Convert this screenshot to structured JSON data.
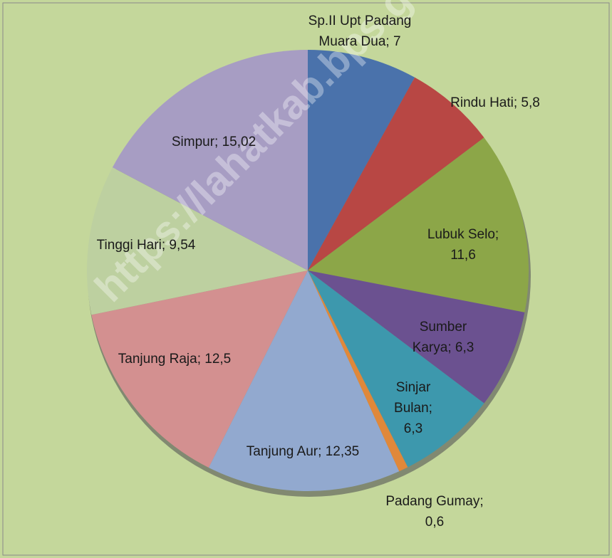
{
  "chart_data": {
    "type": "pie",
    "categories": [
      "Sp.II Upt Padang Muara Dua",
      "Rindu Hati",
      "Lubuk Selo",
      "Sumber Karya",
      "Sinjar Bulan",
      "Padang Gumay",
      "Tanjung Aur",
      "Tanjung Raja",
      "Tinggi Hari",
      "Simpur"
    ],
    "values": [
      7,
      5.8,
      11.6,
      6.3,
      6.3,
      0.6,
      12.35,
      12.5,
      9.54,
      15.02
    ],
    "value_labels": [
      "7",
      "5,8",
      "11,6",
      "6,3",
      "6,3",
      "0,6",
      "12,35",
      "12,5",
      "9,54",
      "15,02"
    ],
    "colors": [
      "#4a72ab",
      "#b84744",
      "#8ca648",
      "#6b5190",
      "#3d98ad",
      "#e0883a",
      "#92a9cf",
      "#d39090",
      "#bdd0a0",
      "#a79dc3"
    ],
    "watermark": "https://lahatkab.bps.go.id"
  }
}
